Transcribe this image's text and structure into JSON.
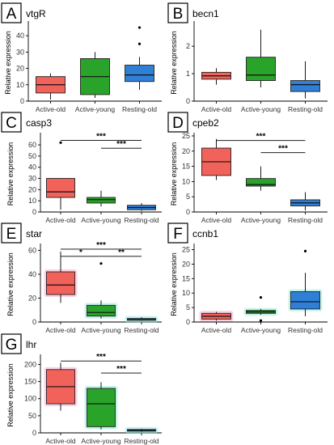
{
  "figure": {
    "categories": [
      "Active-old",
      "Active-young",
      "Resting-old"
    ],
    "ylabel": "Relative expression",
    "colors": [
      "#f0625a",
      "#29a329",
      "#2f7fd6"
    ],
    "glow_colors": [
      "#f19ac8",
      "#7fe7d6",
      "#7fe7d6"
    ]
  },
  "chart_data": [
    {
      "type": "box",
      "panel_label": "A",
      "title": "vtgR",
      "ylim": [
        0,
        47
      ],
      "yticks": [
        0,
        10,
        20,
        30,
        40
      ],
      "yticklabels": [
        "0",
        "10",
        "20",
        "30",
        "40"
      ],
      "boxes": [
        {
          "category": "Active-old",
          "whisker_low": 1,
          "q1": 5,
          "median": 10,
          "q3": 15,
          "whisker_high": 17,
          "outliers": []
        },
        {
          "category": "Active-young",
          "whisker_low": 2,
          "q1": 4,
          "median": 15,
          "q3": 26,
          "whisker_high": 30,
          "outliers": []
        },
        {
          "category": "Resting-old",
          "whisker_low": 7,
          "q1": 12,
          "median": 16,
          "q3": 22,
          "whisker_high": 27,
          "outliers": [
            35,
            45
          ]
        }
      ],
      "significance": []
    },
    {
      "type": "box",
      "panel_label": "B",
      "title": "becn1",
      "ylim": [
        0,
        2.8
      ],
      "yticks": [
        0,
        1,
        2
      ],
      "yticklabels": [
        "0",
        "1",
        "2"
      ],
      "boxes": [
        {
          "category": "Active-old",
          "whisker_low": 0.6,
          "q1": 0.8,
          "median": 0.92,
          "q3": 1.05,
          "whisker_high": 1.2,
          "outliers": []
        },
        {
          "category": "Active-young",
          "whisker_low": 0.5,
          "q1": 0.75,
          "median": 0.95,
          "q3": 1.6,
          "whisker_high": 2.6,
          "outliers": []
        },
        {
          "category": "Resting-old",
          "whisker_low": 0.1,
          "q1": 0.35,
          "median": 0.6,
          "q3": 0.75,
          "whisker_high": 1.45,
          "outliers": []
        }
      ],
      "significance": []
    },
    {
      "type": "box",
      "panel_label": "C",
      "title": "casp3",
      "ylim": [
        0,
        68
      ],
      "yticks": [
        0,
        10,
        20,
        30,
        40,
        50,
        60
      ],
      "yticklabels": [
        "0",
        "10",
        "20",
        "30",
        "40",
        "50",
        "60"
      ],
      "boxes": [
        {
          "category": "Active-old",
          "whisker_low": 2,
          "q1": 13,
          "median": 18,
          "q3": 30,
          "whisker_high": 30,
          "outliers": [
            62
          ]
        },
        {
          "category": "Active-young",
          "whisker_low": 5,
          "q1": 8,
          "median": 11,
          "q3": 13,
          "whisker_high": 19,
          "outliers": []
        },
        {
          "category": "Resting-old",
          "whisker_low": 1,
          "q1": 2,
          "median": 4,
          "q3": 6,
          "whisker_high": 8,
          "outliers": []
        }
      ],
      "significance": [
        {
          "from": 0,
          "to": 2,
          "y": 64,
          "label": "***"
        },
        {
          "from": 1,
          "to": 2,
          "y": 57,
          "label": "***"
        }
      ]
    },
    {
      "type": "box",
      "panel_label": "D",
      "title": "cpeb2",
      "ylim": [
        0,
        25
      ],
      "yticks": [
        0,
        5,
        10,
        15,
        20,
        25
      ],
      "yticklabels": [
        "0",
        "5",
        "10",
        "15",
        "20",
        "25"
      ],
      "boxes": [
        {
          "category": "Active-old",
          "whisker_low": 10.5,
          "q1": 12,
          "median": 16.5,
          "q3": 21,
          "whisker_high": 24,
          "outliers": []
        },
        {
          "category": "Active-young",
          "whisker_low": 7,
          "q1": 8.5,
          "median": 9,
          "q3": 11,
          "whisker_high": 15,
          "outliers": []
        },
        {
          "category": "Resting-old",
          "whisker_low": 0.5,
          "q1": 2,
          "median": 3,
          "q3": 4,
          "whisker_high": 6.5,
          "outliers": []
        }
      ],
      "significance": [
        {
          "from": 0,
          "to": 2,
          "y": 23.5,
          "label": "***"
        },
        {
          "from": 1,
          "to": 2,
          "y": 19.5,
          "label": "***"
        }
      ]
    },
    {
      "type": "box",
      "panel_label": "E",
      "title": "star",
      "ylim": [
        0,
        63
      ],
      "yticks": [
        0,
        20,
        40,
        60
      ],
      "yticklabels": [
        "0",
        "20",
        "40",
        "60"
      ],
      "boxes": [
        {
          "category": "Active-old",
          "whisker_low": 16,
          "q1": 23,
          "median": 31,
          "q3": 42,
          "whisker_high": 59,
          "outliers": []
        },
        {
          "category": "Active-young",
          "whisker_low": 3,
          "q1": 5,
          "median": 8,
          "q3": 14,
          "whisker_high": 18,
          "outliers": [
            49
          ]
        },
        {
          "category": "Resting-old",
          "whisker_low": 1,
          "q1": 1.5,
          "median": 2,
          "q3": 3,
          "whisker_high": 4,
          "outliers": []
        }
      ],
      "significance": [
        {
          "from": 0,
          "to": 2,
          "y": 61,
          "label": "***"
        },
        {
          "from": 0,
          "to": 1,
          "y": 55,
          "label": "*"
        },
        {
          "from": 1,
          "to": 2,
          "y": 55,
          "label": "**"
        }
      ]
    },
    {
      "type": "box",
      "panel_label": "F",
      "title": "ccnb1",
      "ylim": [
        0,
        26
      ],
      "yticks": [
        0,
        5,
        10,
        15,
        20,
        25
      ],
      "yticklabels": [
        "0",
        "5",
        "10",
        "15",
        "20",
        "25"
      ],
      "boxes": [
        {
          "category": "Active-old",
          "whisker_low": 0.5,
          "q1": 1,
          "median": 2,
          "q3": 3,
          "whisker_high": 3.5,
          "outliers": []
        },
        {
          "category": "Active-young",
          "whisker_low": 2.5,
          "q1": 3,
          "median": 3.5,
          "q3": 4,
          "whisker_high": 4.5,
          "outliers": [
            8.5,
            0.5
          ]
        },
        {
          "category": "Resting-old",
          "whisker_low": 2,
          "q1": 4.5,
          "median": 7,
          "q3": 10.5,
          "whisker_high": 17,
          "outliers": [
            24.5
          ]
        }
      ],
      "significance": []
    },
    {
      "type": "box",
      "panel_label": "G",
      "title": "lhr",
      "ylim": [
        0,
        220
      ],
      "yticks": [
        0,
        50,
        100,
        150,
        200
      ],
      "yticklabels": [
        "0",
        "50",
        "100",
        "150",
        "200"
      ],
      "boxes": [
        {
          "category": "Active-old",
          "whisker_low": 65,
          "q1": 85,
          "median": 135,
          "q3": 185,
          "whisker_high": 205,
          "outliers": []
        },
        {
          "category": "Active-young",
          "whisker_low": 10,
          "q1": 18,
          "median": 85,
          "q3": 130,
          "whisker_high": 148,
          "outliers": []
        },
        {
          "category": "Resting-old",
          "whisker_low": 3,
          "q1": 5,
          "median": 7,
          "q3": 10,
          "whisker_high": 12,
          "outliers": []
        }
      ],
      "significance": [
        {
          "from": 0,
          "to": 2,
          "y": 210,
          "label": "***"
        },
        {
          "from": 1,
          "to": 2,
          "y": 175,
          "label": "***"
        }
      ]
    }
  ]
}
